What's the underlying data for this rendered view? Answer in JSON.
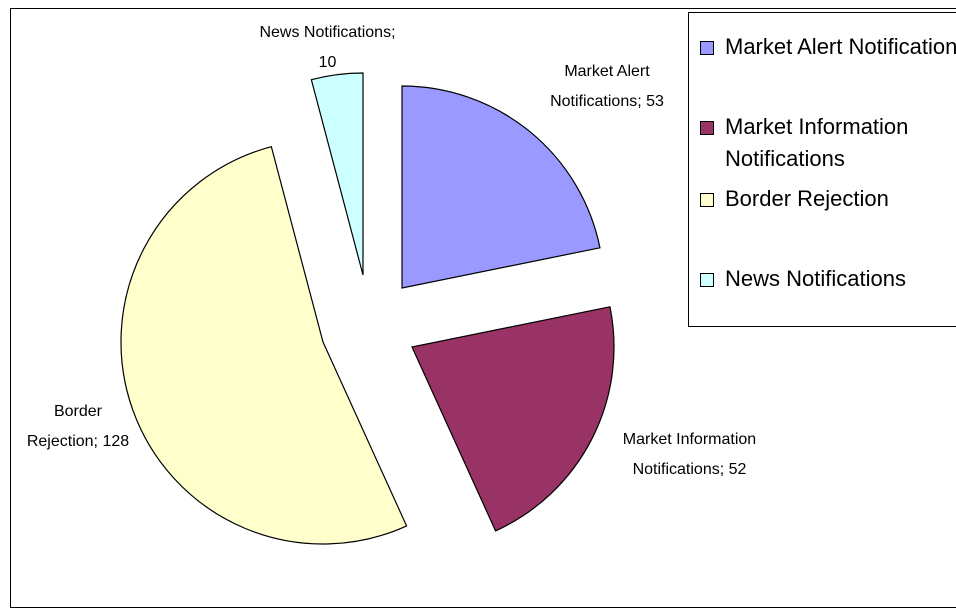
{
  "chart_data": {
    "type": "pie",
    "categories": [
      "Market Alert Notifications",
      "Market Information Notifications",
      "Border Rejection",
      "News Notifications"
    ],
    "values": [
      53,
      52,
      128,
      10
    ],
    "value_labels": [
      "Market Alert Notifications; 53",
      "Market Information Notifications; 52",
      "Border Rejection; 128",
      "News Notifications; 10"
    ],
    "colors": [
      "#9999ff",
      "#993366",
      "#ffffcc",
      "#ccffff"
    ],
    "legend": "right"
  }
}
